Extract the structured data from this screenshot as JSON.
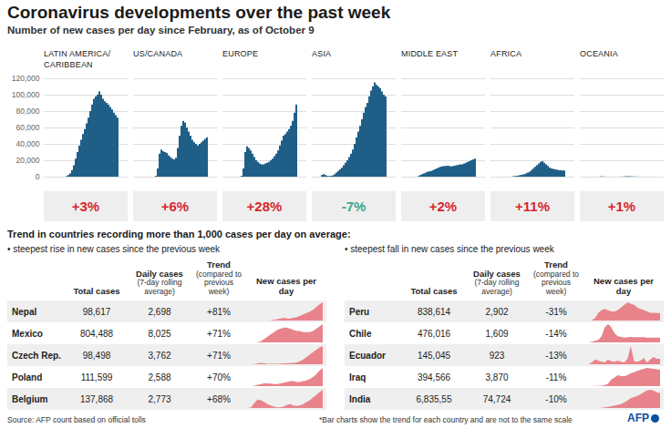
{
  "title": "Coronavirus developments over the past week",
  "subtitle": "Number of new cases per day since February, as of October 9",
  "chart_data": [
    {
      "type": "bar",
      "title": "LATIN AMERICA/\nCARIBBEAN",
      "color": "#1f5f87",
      "ylim": [
        0,
        120000
      ],
      "yticks": [
        0,
        {
          "value": 20000,
          "label": "20,000"
        },
        {
          "value": 40000,
          "label": "40,000"
        },
        {
          "value": 60000,
          "label": "60,000"
        },
        {
          "value": 80000,
          "label": "80,000"
        },
        {
          "value": 100000,
          "label": "100,000"
        },
        {
          "value": 120000,
          "label": "120,000"
        }
      ],
      "grid": true,
      "tick_labels": "y",
      "change": 3,
      "change_label": "+3%",
      "values": [
        0,
        0,
        0,
        0,
        0,
        0,
        100,
        800,
        2000,
        4000,
        8000,
        14000,
        22000,
        30000,
        38000,
        45000,
        52000,
        58000,
        65000,
        72000,
        80000,
        88000,
        95000,
        98000,
        100000,
        104000,
        100000,
        95000,
        92000,
        90000,
        88000,
        85000,
        82000,
        78000,
        75000,
        72000
      ]
    },
    {
      "type": "bar",
      "title": "US/CANADA",
      "color": "#1f5f87",
      "ylim": [
        0,
        120000
      ],
      "yticks": [
        0,
        20000,
        40000,
        60000,
        80000,
        100000,
        120000
      ],
      "grid": true,
      "tick_labels": false,
      "change": 6,
      "change_label": "+6%",
      "values": [
        0,
        0,
        0,
        0,
        0,
        0,
        50,
        1000,
        10000,
        28000,
        33000,
        31000,
        30000,
        29000,
        26000,
        24000,
        22000,
        21000,
        23000,
        35000,
        50000,
        62000,
        68000,
        66000,
        60000,
        55000,
        50000,
        45000,
        42000,
        40000,
        38000,
        40000,
        42000,
        44000,
        46000,
        48000
      ]
    },
    {
      "type": "bar",
      "title": "EUROPE",
      "color": "#1f5f87",
      "ylim": [
        0,
        120000
      ],
      "yticks": [
        0,
        20000,
        40000,
        60000,
        80000,
        100000,
        120000
      ],
      "grid": true,
      "tick_labels": false,
      "change": 28,
      "change_label": "+28%",
      "values": [
        0,
        0,
        0,
        0,
        50,
        1000,
        10000,
        30000,
        37000,
        35000,
        32000,
        28000,
        24000,
        20000,
        18000,
        16000,
        15000,
        15000,
        16000,
        17000,
        18000,
        20000,
        22000,
        25000,
        28000,
        32000,
        38000,
        44000,
        50000,
        52000,
        55000,
        58000,
        62000,
        68000,
        78000,
        88000
      ]
    },
    {
      "type": "bar",
      "title": "ASIA",
      "color": "#1f5f87",
      "ylim": [
        0,
        120000
      ],
      "yticks": [
        0,
        20000,
        40000,
        60000,
        80000,
        100000,
        120000
      ],
      "grid": true,
      "tick_labels": false,
      "change": -7,
      "change_label": "-7%",
      "values": [
        2000,
        3000,
        2000,
        1000,
        800,
        1000,
        1500,
        3000,
        5000,
        7000,
        9000,
        11000,
        14000,
        17000,
        20000,
        24000,
        28000,
        33000,
        40000,
        48000,
        55000,
        62000,
        70000,
        78000,
        85000,
        90000,
        98000,
        105000,
        110000,
        115000,
        112000,
        110000,
        108000,
        104000,
        100000,
        98000
      ]
    },
    {
      "type": "bar",
      "title": "MIDDLE EAST",
      "color": "#1f5f87",
      "ylim": [
        0,
        120000
      ],
      "yticks": [
        0,
        20000,
        40000,
        60000,
        80000,
        100000,
        120000
      ],
      "grid": true,
      "tick_labels": false,
      "change": 2,
      "change_label": "+2%",
      "values": [
        0,
        0,
        0,
        100,
        800,
        2000,
        3000,
        4000,
        5000,
        6000,
        6500,
        7000,
        8000,
        9000,
        10000,
        11000,
        12000,
        12500,
        13000,
        13000,
        13500,
        13000,
        12500,
        13000,
        13500,
        14000,
        14500,
        15000,
        15000,
        16000,
        17000,
        18000,
        19000,
        20000,
        21000,
        22000
      ]
    },
    {
      "type": "bar",
      "title": "AFRICA",
      "color": "#1f5f87",
      "ylim": [
        0,
        120000
      ],
      "yticks": [
        0,
        20000,
        40000,
        60000,
        80000,
        100000,
        120000
      ],
      "grid": true,
      "tick_labels": false,
      "change": 11,
      "change_label": "+11%",
      "values": [
        0,
        0,
        0,
        0,
        0,
        0,
        100,
        500,
        800,
        1000,
        1500,
        2000,
        2500,
        3000,
        4000,
        5000,
        6000,
        8000,
        10000,
        12000,
        14000,
        16000,
        18000,
        19000,
        17000,
        15000,
        13000,
        11000,
        10000,
        9500,
        9000,
        8500,
        8000,
        8000,
        7500,
        7500
      ]
    },
    {
      "type": "bar",
      "title": "OCEANIA",
      "color": "#1f5f87",
      "ylim": [
        0,
        120000
      ],
      "yticks": [
        0,
        20000,
        40000,
        60000,
        80000,
        100000,
        120000
      ],
      "grid": true,
      "tick_labels": false,
      "change": 1,
      "change_label": "+1%",
      "values": [
        0,
        0,
        0,
        0,
        0,
        100,
        300,
        400,
        200,
        50,
        20,
        20,
        20,
        20,
        20,
        30,
        50,
        100,
        200,
        400,
        500,
        600,
        500,
        400,
        300,
        200,
        150,
        100,
        50,
        30,
        20,
        20,
        20,
        20,
        20,
        20
      ]
    }
  ],
  "trend_title": "Trend in countries recording more than 1,000 cases per day on average:",
  "tables": [
    {
      "heading": "• steepest rise in new cases since the previous week",
      "color": "#e8838b",
      "columns": [
        {
          "title": "Total cases"
        },
        {
          "title": "Daily cases",
          "note": "(7-day rolling average)"
        },
        {
          "title": "Trend",
          "note": "(compared to previous week)"
        },
        {
          "title": "New cases per day"
        }
      ],
      "rows": [
        {
          "country": "Nepal",
          "total": "98,617",
          "daily": "2,698",
          "trend": "+81%",
          "spark": [
            0,
            0,
            0,
            0,
            0,
            0,
            0,
            50,
            100,
            200,
            300,
            400,
            300,
            300,
            400,
            500,
            700,
            900,
            1100,
            1300,
            1600,
            2000,
            2400,
            2700
          ]
        },
        {
          "country": "Mexico",
          "total": "804,488",
          "daily": "8,025",
          "trend": "+71%",
          "spark": [
            0,
            0,
            0,
            100,
            500,
            1500,
            2500,
            3500,
            4500,
            5500,
            6000,
            6500,
            6500,
            6000,
            5500,
            5000,
            5000,
            4500,
            4500,
            4500,
            5000,
            6000,
            7000,
            8000
          ]
        },
        {
          "country": "Czech Rep.",
          "total": "98,498",
          "daily": "3,762",
          "trend": "+71%",
          "spark": [
            0,
            0,
            50,
            200,
            300,
            200,
            100,
            80,
            80,
            100,
            150,
            200,
            200,
            250,
            300,
            400,
            600,
            1000,
            1500,
            2000,
            2500,
            3000,
            3500,
            3800
          ]
        },
        {
          "country": "Poland",
          "total": "111,599",
          "daily": "2,588",
          "trend": "+70%",
          "spark": [
            0,
            0,
            50,
            200,
            300,
            400,
            400,
            350,
            300,
            300,
            400,
            500,
            600,
            700,
            700,
            600,
            600,
            700,
            800,
            1000,
            1300,
            1700,
            2200,
            2600
          ]
        },
        {
          "country": "Belgium",
          "total": "137,868",
          "daily": "2,773",
          "trend": "+68%",
          "spark": [
            0,
            100,
            800,
            1300,
            1200,
            900,
            600,
            400,
            200,
            100,
            100,
            200,
            500,
            600,
            400,
            300,
            400,
            600,
            900,
            1200,
            1600,
            2000,
            2400,
            2800
          ]
        }
      ]
    },
    {
      "heading": "• steepest fall in new cases since the previous week",
      "color": "#e8838b",
      "columns": [
        {
          "title": "Total cases"
        },
        {
          "title": "Daily cases",
          "note": "(7-day rolling average)"
        },
        {
          "title": "Trend",
          "note": "(compared to previous week)"
        },
        {
          "title": "New cases per day"
        }
      ],
      "rows": [
        {
          "country": "Peru",
          "total": "838,614",
          "daily": "2,902",
          "trend": "-31%",
          "spark": [
            0,
            0,
            100,
            1000,
            3000,
            4000,
            4500,
            4000,
            3500,
            3500,
            4000,
            5000,
            6000,
            7000,
            6500,
            6000,
            5000,
            4500,
            4000,
            3500,
            3000,
            3000,
            2900,
            2900
          ]
        },
        {
          "country": "Chile",
          "total": "476,016",
          "daily": "1,609",
          "trend": "-14%",
          "spark": [
            0,
            0,
            200,
            500,
            800,
            2000,
            5000,
            6000,
            5000,
            3000,
            2000,
            1800,
            1600,
            1700,
            1800,
            1700,
            1700,
            1700,
            1700,
            1600,
            1600,
            1600,
            1600,
            1600
          ]
        },
        {
          "country": "Ecuador",
          "total": "145,045",
          "daily": "923",
          "trend": "-13%",
          "spark": [
            0,
            0,
            300,
            800,
            600,
            400,
            300,
            800,
            500,
            400,
            600,
            400,
            300,
            900,
            3000,
            500,
            400,
            600,
            1000,
            300,
            800,
            1200,
            900,
            900
          ]
        },
        {
          "country": "Iraq",
          "total": "394,566",
          "daily": "3,870",
          "trend": "-11%",
          "spark": [
            0,
            0,
            10,
            30,
            50,
            100,
            200,
            600,
            1500,
            2000,
            2500,
            2300,
            2300,
            2500,
            3000,
            3200,
            3500,
            3800,
            4000,
            4200,
            4100,
            4000,
            3900,
            3800
          ]
        },
        {
          "country": "India",
          "total": "6,835,55",
          "daily": "74,724",
          "trend": "-10%",
          "spark": [
            0,
            0,
            0,
            50,
            200,
            1000,
            3000,
            6000,
            9000,
            12000,
            16000,
            20000,
            28000,
            38000,
            50000,
            56000,
            62000,
            70000,
            80000,
            90000,
            93000,
            88000,
            80000,
            75000
          ]
        }
      ]
    }
  ],
  "source": "Source: AFP count based on official tolls",
  "footnote": "*Bar charts show the trend for each country and are not to the same scale",
  "logo": "AFP"
}
